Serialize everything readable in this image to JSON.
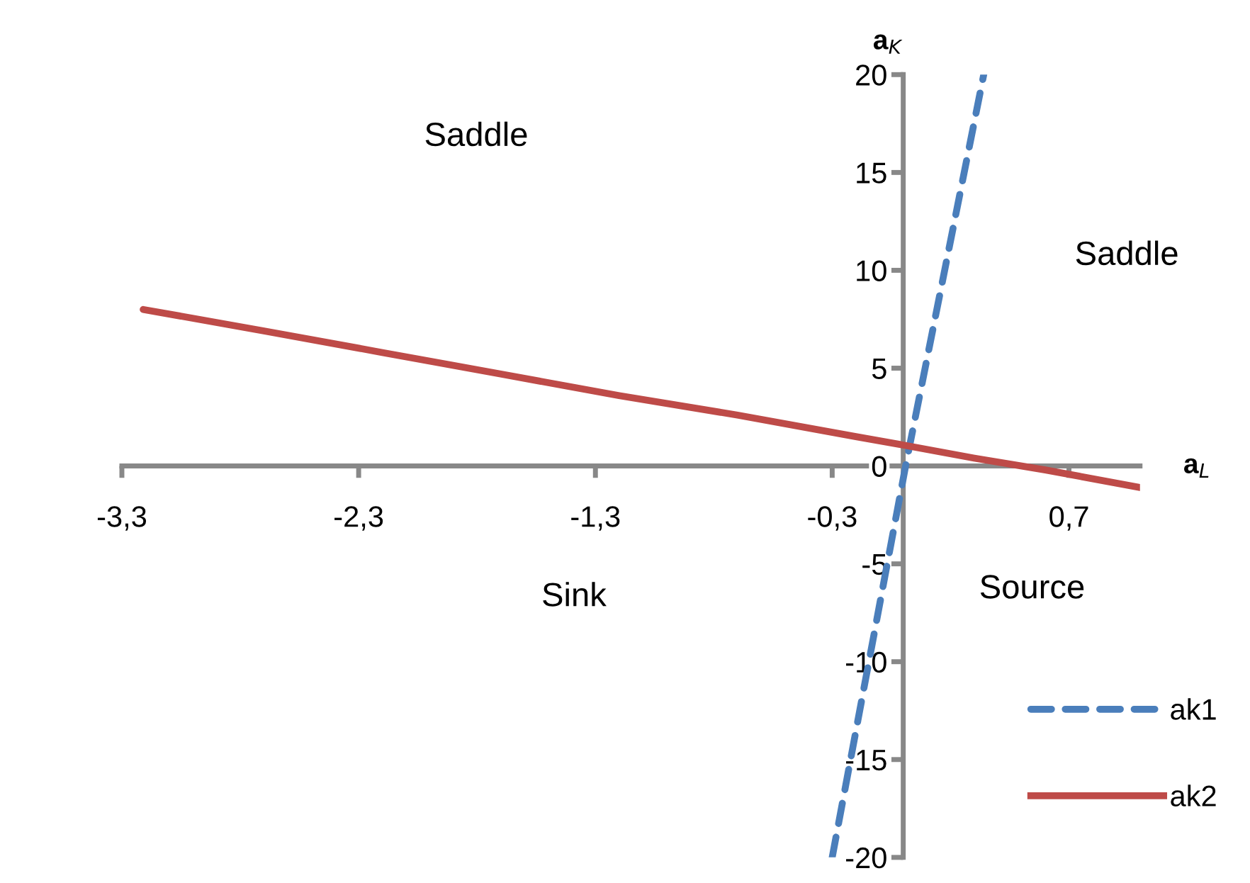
{
  "chart_data": {
    "type": "line",
    "xlabel": "a$_{L}$",
    "ylabel": "a$_{K}$",
    "xlim": [
      -3.3,
      1.0
    ],
    "ylim": [
      -20,
      20
    ],
    "xticks": [
      {
        "value": -3.3,
        "label": "-3,3"
      },
      {
        "value": -2.3,
        "label": "-2,3"
      },
      {
        "value": -1.3,
        "label": "-1,3"
      },
      {
        "value": -0.3,
        "label": "-0,3"
      },
      {
        "value": 0.7,
        "label": "0,7"
      }
    ],
    "yticks": [
      -20,
      -15,
      -10,
      -5,
      0,
      5,
      10,
      15,
      20
    ],
    "series": [
      {
        "name": "ak1",
        "color": "#4a7ebb",
        "line_style": "dashed",
        "x": [
          -0.3,
          0.01,
          0.34
        ],
        "values": [
          -20,
          0,
          20
        ]
      },
      {
        "name": "ak2",
        "color": "#be4b48",
        "line_style": "solid",
        "x": [
          -3.21,
          -2.7,
          -2.2,
          -1.7,
          -1.2,
          -0.7,
          -0.2,
          0.0,
          0.3,
          0.6,
          1.0
        ],
        "values": [
          8.0,
          6.9,
          5.8,
          4.7,
          3.6,
          2.6,
          1.5,
          1.07,
          0.4,
          -0.2,
          -1.1
        ]
      }
    ],
    "annotations": [
      "Saddle",
      "Saddle",
      "Sink",
      "Source"
    ],
    "grid": false,
    "legend": "bottom right",
    "marker": "none"
  }
}
